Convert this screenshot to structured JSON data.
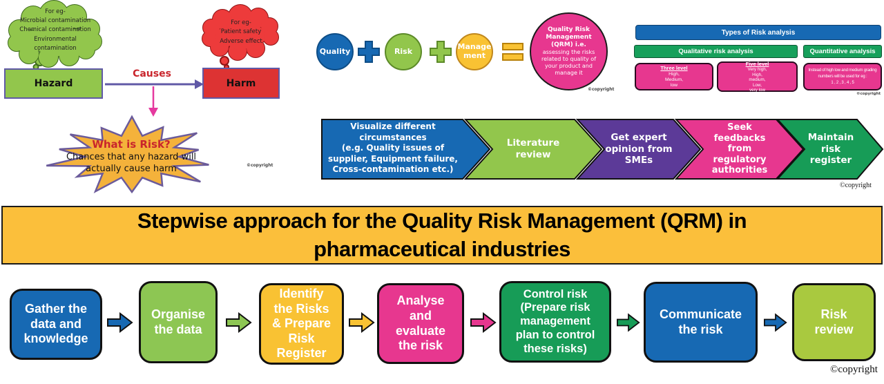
{
  "colors": {
    "blue": "#1769B3",
    "green_light": "#92C64C",
    "yellow": "#F9C233",
    "pink": "#E7378F",
    "purple": "#5C3A98",
    "green_dark": "#179C57",
    "red": "#DD3333",
    "red_text": "#C9252C",
    "banner_yellow": "#FBBF3B",
    "purple_border": "#6059A6",
    "pink_arrow": "#E5399F",
    "star_fill": "#F4B23B"
  },
  "hazard_diagram": {
    "hazard_cloud_text": "For eg-\nMicrobial contamination\nChemical contamination\nEnvironmental\ncontamination",
    "hazard_label": "Hazard",
    "causes_label": "Causes",
    "harm_cloud_text": "For eg-\nPatient safety\nAdverse effect",
    "harm_label": "Harm",
    "risk_star_title": "What is Risk?",
    "risk_star_body": "Chances that any hazard will\nactually cause harm",
    "copyright": "©copyright"
  },
  "qrm_equation": {
    "term1": "Quality",
    "term2": "Risk",
    "term3": "Manage\nment",
    "result_title": "Quality Risk\nManagement\n(QRM) i.e.",
    "result_body": "assessing the risks\nrelated to quality of\nyour product and\nmanage it",
    "copyright": "©copyright"
  },
  "risk_analysis_panel": {
    "title": "Types of Risk analysis",
    "qualitative_heading": "Qualitative risk analysis",
    "quantitative_heading": "Quantitative analysis",
    "three_level_title": "Three level",
    "three_level_body": "High,\nMedium,\nlow",
    "five_level_title": "Five level",
    "five_level_body": "Very high,\nHigh,\nmedium,\nLow,\nvery low",
    "quantitative_body": "Instead of high low and medium grading\nnumbers will be used for eg :\n1 , 2 , 3 , 4 , 5",
    "copyright": "©copyright"
  },
  "assessment_flow": {
    "steps": [
      {
        "label": "Visualize different\ncircumstances\n(e.g. Quality issues of\nsupplier, Equipment failure,\nCross-contamination etc.)",
        "color": "#1769B3"
      },
      {
        "label": "Literature\nreview",
        "color": "#92C64C"
      },
      {
        "label": "Get expert\nopinion from\nSMEs",
        "color": "#5C3A98"
      },
      {
        "label": "Seek\nfeedbacks\nfrom\nregulatory\nauthorities",
        "color": "#E7378F"
      },
      {
        "label": "Maintain\nrisk\nregister",
        "color": "#179C57"
      }
    ],
    "copyright": "©copyright"
  },
  "banner": {
    "title": "Stepwise approach for the Quality Risk Management (QRM) in\npharmaceutical industries"
  },
  "stepwise_flow": {
    "steps": [
      {
        "label": "Gather the\ndata and\nknowledge"
      },
      {
        "label": "Organise\nthe data"
      },
      {
        "label": "Identify\nthe Risks\n& Prepare\nRisk\nRegister"
      },
      {
        "label": "Analyse\nand\nevaluate\nthe risk"
      },
      {
        "label": "Control risk\n(Prepare risk\nmanagement\nplan to control\nthese risks)"
      },
      {
        "label": "Communicate\nthe risk"
      },
      {
        "label": "Risk\nreview"
      }
    ],
    "arrow_colors": [
      "#1769B3",
      "#8DC653",
      "#F9C233",
      "#E7378F",
      "#179C57",
      "#1769B3"
    ],
    "copyright": "©copyright"
  }
}
